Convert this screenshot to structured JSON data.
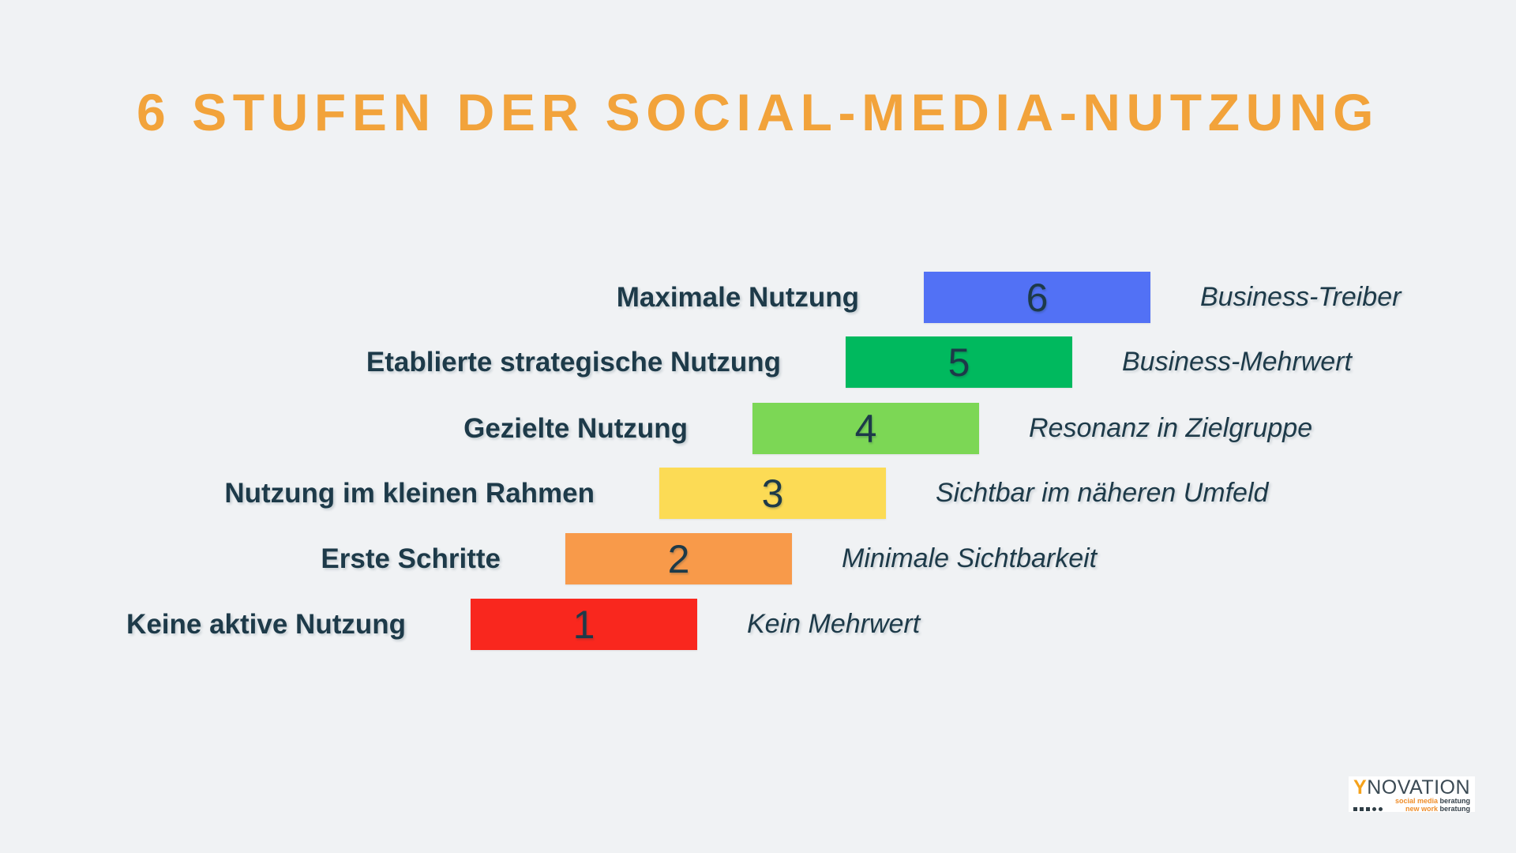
{
  "title": "6 STUFEN DER SOCIAL-MEDIA-NUTZUNG",
  "colors": {
    "background": "#F0F2F4",
    "title": "#F2A33B",
    "text": "#1D3A49"
  },
  "chart_data": {
    "type": "bar",
    "title": "6 STUFEN DER SOCIAL-MEDIA-NUTZUNG",
    "orientation": "horizontal-staircase",
    "categories": [
      "Keine aktive Nutzung",
      "Erste Schritte",
      "Nutzung im kleinen Rahmen",
      "Gezielte Nutzung",
      "Etablierte strategische Nutzung",
      "Maximale Nutzung"
    ],
    "values": [
      1,
      2,
      3,
      4,
      5,
      6
    ],
    "annotations": [
      "Kein Mehrwert",
      "Minimale Sichtbarkeit",
      "Sichtbar im näheren Umfeld",
      "Resonanz in Zielgruppe",
      "Business-Mehrwert",
      "Business-Treiber"
    ],
    "bar_colors": [
      "#F9271E",
      "#F89A4A",
      "#FCDB55",
      "#7CD755",
      "#00B95E",
      "#5271F5"
    ],
    "xlabel": "",
    "ylabel": "",
    "legend": false,
    "grid": false
  },
  "rows": [
    {
      "value": "6",
      "label": "Maximale Nutzung",
      "description": "Business-Treiber",
      "color": "#5271F5"
    },
    {
      "value": "5",
      "label": "Etablierte strategische Nutzung",
      "description": "Business-Mehrwert",
      "color": "#00B95E"
    },
    {
      "value": "4",
      "label": "Gezielte Nutzung",
      "description": "Resonanz in Zielgruppe",
      "color": "#7CD755"
    },
    {
      "value": "3",
      "label": "Nutzung im kleinen Rahmen",
      "description": "Sichtbar im näheren Umfeld",
      "color": "#FCDB55"
    },
    {
      "value": "2",
      "label": "Erste Schritte",
      "description": "Minimale Sichtbarkeit",
      "color": "#F89A4A"
    },
    {
      "value": "1",
      "label": "Keine aktive Nutzung",
      "description": "Kein Mehrwert",
      "color": "#F9271E"
    }
  ],
  "logo": {
    "brand_highlight": "Y",
    "brand_rest": "NOVATION",
    "line1_highlight": "social media",
    "line1_rest": " beratung",
    "line2_highlight": "new work",
    "line2_rest": " beratung"
  }
}
